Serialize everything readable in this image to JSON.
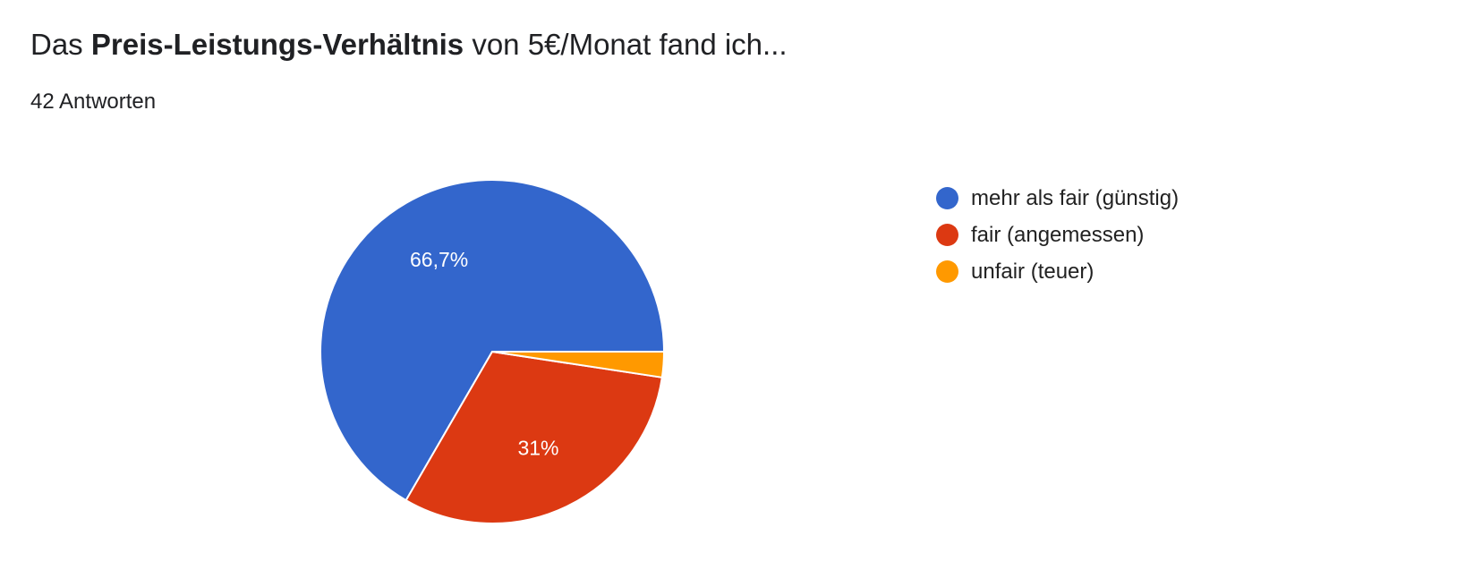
{
  "header": {
    "title_prefix": "Das ",
    "title_bold": "Preis-Leistungs-Verhältnis",
    "title_suffix": " von 5€/Monat fand ich...",
    "responses": "42 Antworten"
  },
  "chart_data": {
    "type": "pie",
    "title": "Das Preis-Leistungs-Verhältnis von 5€/Monat fand ich...",
    "legend_placement": "right",
    "slices": [
      {
        "label": "mehr als fair (günstig)",
        "value": 66.7,
        "display": "66,7%",
        "color": "#3366cc"
      },
      {
        "label": "fair (angemessen)",
        "value": 31.0,
        "display": "31%",
        "color": "#dc3912"
      },
      {
        "label": "unfair (teuer)",
        "value": 2.4,
        "display": "",
        "color": "#ff9900"
      }
    ]
  }
}
